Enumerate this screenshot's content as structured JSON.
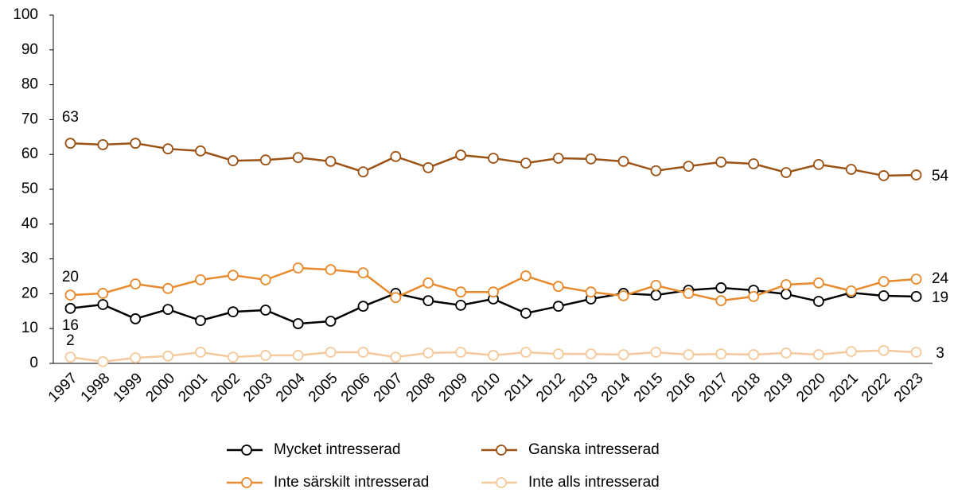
{
  "chart_data": {
    "type": "line",
    "categories": [
      "1997",
      "1998",
      "1999",
      "2000",
      "2001",
      "2002",
      "2003",
      "2004",
      "2005",
      "2006",
      "2007",
      "2008",
      "2009",
      "2010",
      "2011",
      "2012",
      "2013",
      "2014",
      "2015",
      "2016",
      "2017",
      "2018",
      "2019",
      "2020",
      "2021",
      "2022",
      "2023"
    ],
    "ylim": [
      0,
      100
    ],
    "yticks": [
      0,
      10,
      20,
      30,
      40,
      50,
      60,
      70,
      80,
      90,
      100
    ],
    "series": [
      {
        "name": "Mycket intresserad",
        "color": "#000000",
        "values": [
          15.8,
          16.9,
          12.8,
          15.5,
          12.3,
          14.8,
          15.3,
          11.4,
          12.1,
          16.4,
          20.1,
          18.0,
          16.7,
          18.5,
          14.4,
          16.4,
          18.5,
          20.1,
          19.6,
          21.0,
          21.7,
          21.0,
          19.9,
          17.8,
          20.3,
          19.4,
          19.2
        ],
        "value_labels": [
          "16",
          null,
          null,
          null,
          null,
          null,
          null,
          null,
          null,
          null,
          null,
          null,
          null,
          null,
          null,
          null,
          null,
          null,
          null,
          null,
          null,
          null,
          null,
          null,
          null,
          null,
          "19"
        ]
      },
      {
        "name": "Ganska intresserad",
        "color": "#9c5214",
        "values": [
          63.2,
          62.8,
          63.2,
          61.6,
          61.0,
          58.2,
          58.4,
          59.1,
          58.0,
          55.0,
          59.4,
          56.2,
          59.8,
          58.9,
          57.5,
          58.9,
          58.7,
          58.0,
          55.3,
          56.6,
          57.8,
          57.3,
          54.8,
          57.1,
          55.7,
          53.9,
          54.1
        ],
        "value_labels": [
          "63",
          null,
          null,
          null,
          null,
          null,
          null,
          null,
          null,
          null,
          null,
          null,
          null,
          null,
          null,
          null,
          null,
          null,
          null,
          null,
          null,
          null,
          null,
          null,
          null,
          null,
          "54"
        ]
      },
      {
        "name": "Inte särskilt intresserad",
        "color": "#e8892c",
        "values": [
          19.6,
          20.1,
          22.8,
          21.5,
          24.0,
          25.3,
          24.0,
          27.4,
          26.9,
          26.0,
          18.9,
          23.1,
          20.5,
          20.5,
          25.1,
          22.1,
          20.5,
          19.4,
          22.4,
          20.1,
          18.0,
          19.2,
          22.6,
          23.1,
          20.8,
          23.5,
          24.2
        ],
        "value_labels": [
          "20",
          null,
          null,
          null,
          null,
          null,
          null,
          null,
          null,
          null,
          null,
          null,
          null,
          null,
          null,
          null,
          null,
          null,
          null,
          null,
          null,
          null,
          null,
          null,
          null,
          null,
          "24"
        ]
      },
      {
        "name": "Inte alls intresserad",
        "color": "#f5c99c",
        "values": [
          1.8,
          0.5,
          1.6,
          2.1,
          3.2,
          1.8,
          2.3,
          2.3,
          3.2,
          3.2,
          1.8,
          3.0,
          3.2,
          2.3,
          3.2,
          2.7,
          2.7,
          2.5,
          3.2,
          2.5,
          2.7,
          2.5,
          3.0,
          2.5,
          3.4,
          3.7,
          3.2
        ],
        "value_labels": [
          "2",
          null,
          null,
          null,
          null,
          null,
          null,
          null,
          null,
          null,
          null,
          null,
          null,
          null,
          null,
          null,
          null,
          null,
          null,
          null,
          null,
          null,
          null,
          null,
          null,
          null,
          "3"
        ]
      }
    ]
  }
}
